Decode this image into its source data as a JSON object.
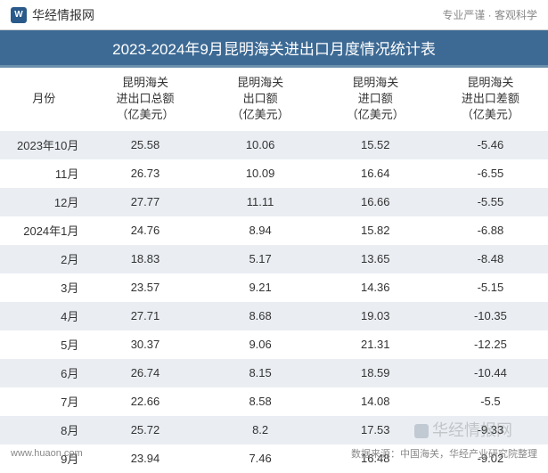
{
  "header": {
    "site_name": "华经情报网",
    "tagline": "专业严谨 · 客观科学"
  },
  "title": "2023-2024年9月昆明海关进出口月度情况统计表",
  "table": {
    "columns": [
      "月份",
      "昆明海关\n进出口总额\n（亿美元）",
      "昆明海关\n出口额\n（亿美元）",
      "昆明海关\n进口额\n（亿美元）",
      "昆明海关\n进出口差额\n（亿美元）"
    ],
    "rows": [
      {
        "month": "2023年10月",
        "total": "25.58",
        "export": "10.06",
        "import": "15.52",
        "balance": "-5.46"
      },
      {
        "month": "11月",
        "total": "26.73",
        "export": "10.09",
        "import": "16.64",
        "balance": "-6.55"
      },
      {
        "month": "12月",
        "total": "27.77",
        "export": "11.11",
        "import": "16.66",
        "balance": "-5.55"
      },
      {
        "month": "2024年1月",
        "total": "24.76",
        "export": "8.94",
        "import": "15.82",
        "balance": "-6.88"
      },
      {
        "month": "2月",
        "total": "18.83",
        "export": "5.17",
        "import": "13.65",
        "balance": "-8.48"
      },
      {
        "month": "3月",
        "total": "23.57",
        "export": "9.21",
        "import": "14.36",
        "balance": "-5.15"
      },
      {
        "month": "4月",
        "total": "27.71",
        "export": "8.68",
        "import": "19.03",
        "balance": "-10.35"
      },
      {
        "month": "5月",
        "total": "30.37",
        "export": "9.06",
        "import": "21.31",
        "balance": "-12.25"
      },
      {
        "month": "6月",
        "total": "26.74",
        "export": "8.15",
        "import": "18.59",
        "balance": "-10.44"
      },
      {
        "month": "7月",
        "total": "22.66",
        "export": "8.58",
        "import": "14.08",
        "balance": "-5.5"
      },
      {
        "month": "8月",
        "total": "25.72",
        "export": "8.2",
        "import": "17.53",
        "balance": "-9.33"
      },
      {
        "month": "9月",
        "total": "23.94",
        "export": "7.46",
        "import": "16.48",
        "balance": "-9.02"
      }
    ]
  },
  "footer": {
    "url": "www.huaon.com",
    "source": "数据来源：中国海关，华经产业研究院整理"
  },
  "watermark": "华经情报网",
  "styling": {
    "title_bg": "#3d6a94",
    "title_border": "#6b8fab",
    "row_odd_bg": "#eaeef3",
    "row_even_bg": "#ffffff",
    "negative_color": "#4a7ab0",
    "text_color": "#333333",
    "muted_color": "#888888",
    "font_size_title": 17,
    "font_size_header": 13,
    "font_size_cell": 13,
    "font_size_footer": 11
  }
}
